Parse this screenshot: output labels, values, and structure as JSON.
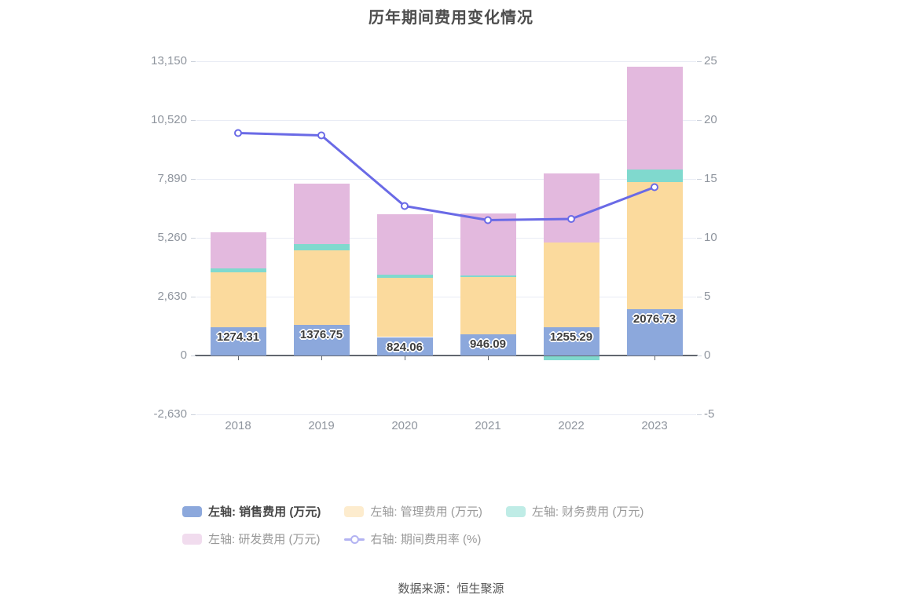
{
  "title": "历年期间费用变化情况",
  "source": "数据来源：恒生聚源",
  "colors": {
    "sales_blue": "#8ca8dc",
    "management_orange": "#fbda9d",
    "finance_teal": "#80d9ce",
    "rd_pink": "#e3b9de",
    "rate_line_purple": "#6a6ae6",
    "grid": "#e9ecf5",
    "axis": "#62676f",
    "axis_text": "#8f959e",
    "title_text": "#4d4d4d"
  },
  "chart_data": {
    "type": "bar",
    "subtype": "stacked-bars-with-line",
    "categories": [
      "2018",
      "2019",
      "2020",
      "2021",
      "2022",
      "2023"
    ],
    "bar_series": [
      {
        "name": "左轴: 销售费用 (万元)",
        "color": "#8ca8dc",
        "values": [
          1274.31,
          1376.75,
          824.06,
          946.09,
          1255.29,
          2076.73
        ],
        "data_labels": [
          "1274.31",
          "1376.75",
          "824.06",
          "946.09",
          "1255.29",
          "2076.73"
        ]
      },
      {
        "name": "左轴: 管理费用 (万元)",
        "color": "#fbda9d",
        "values": [
          2450,
          3320,
          2650,
          2550,
          3790,
          5670
        ]
      },
      {
        "name": "左轴: 财务费用 (万元)",
        "color": "#80d9ce",
        "values": [
          175,
          280,
          140,
          80,
          -160,
          560
        ]
      },
      {
        "name": "左轴: 研发费用 (万元)",
        "color": "#e3b9de",
        "values": [
          1610,
          2700,
          2690,
          2760,
          3100,
          4590
        ]
      }
    ],
    "line_series": {
      "name": "右轴: 期间费用率 (%)",
      "color": "#6a6ae6",
      "axis": "right",
      "symbol": "empty-circle",
      "values": [
        18.9,
        18.7,
        12.7,
        11.5,
        11.6,
        14.3
      ]
    },
    "left_axis": {
      "ticks": [
        "13,150",
        "10,520",
        "7,890",
        "5,260",
        "2,630",
        "0",
        "-2,630"
      ],
      "min": -2630,
      "max": 13150,
      "interval": 2630
    },
    "right_axis": {
      "ticks": [
        "25",
        "20",
        "15",
        "10",
        "5",
        "0",
        "-5"
      ],
      "min": -5,
      "max": 25,
      "interval": 5
    },
    "grid": true,
    "legend_position": "bottom",
    "legend_rows": [
      [
        0,
        1,
        2
      ],
      [
        3,
        4
      ]
    ],
    "emphasized_legend_index": 0
  }
}
